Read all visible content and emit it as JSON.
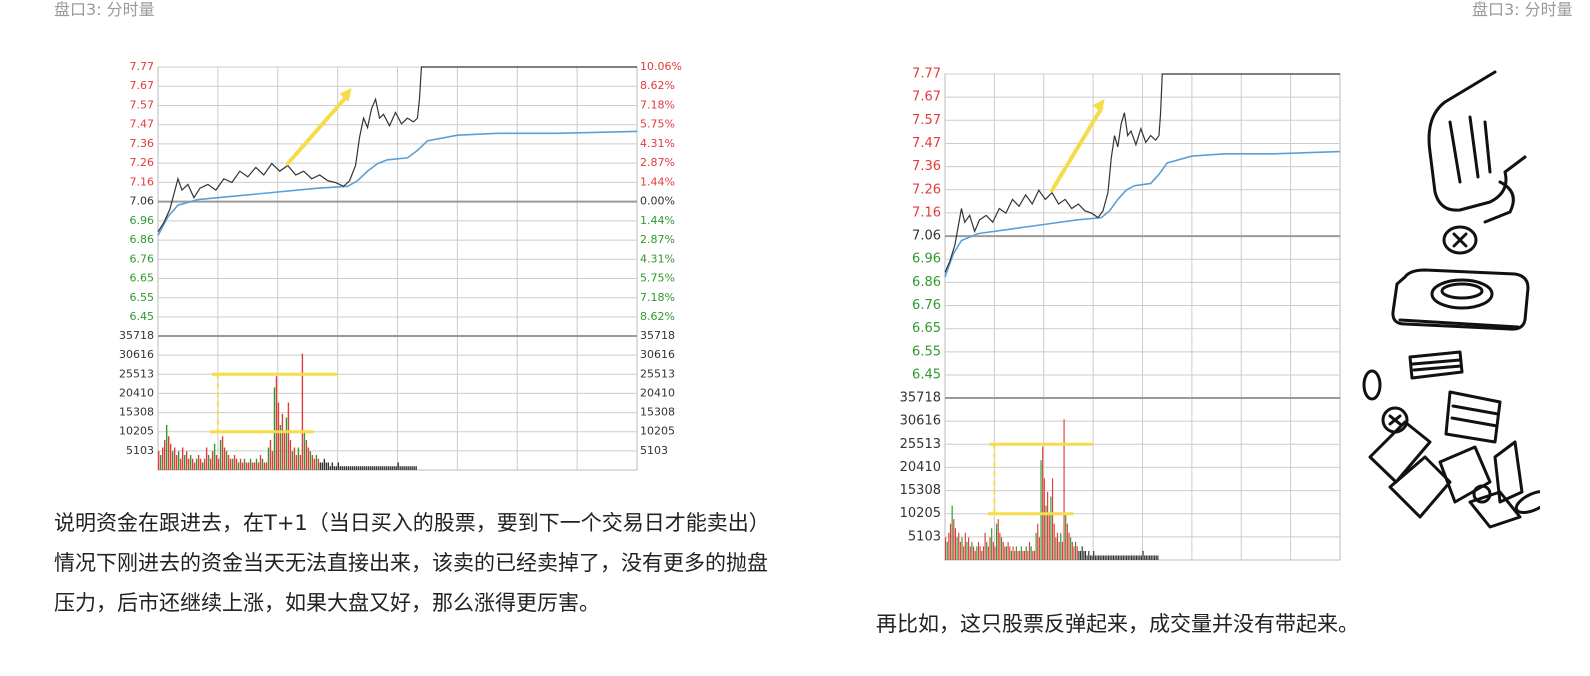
{
  "header": {
    "left": "盘口3: 分时量",
    "right": "盘口3: 分时量"
  },
  "paragraphs": {
    "first": "说明资金在跟进去，在T+1（当日买入的股票，要到下一个交易日才能卖出）情况下刚进去的资金当天无法直接出来，该卖的已经卖掉了，没有更多的抛盘压力，后市还继续上涨，如果大盘又好，那么涨得更厉害。",
    "second": "再比如，这只股票反弹起来，成交量并没有带起来。"
  },
  "colors": {
    "up": "#e23b3b",
    "down": "#2e9a2e",
    "neutral": "#333333",
    "price_line": "#333333",
    "avg_line": "#5aa0d8",
    "annotation": "#f5dc4a",
    "grid": "#cccccc"
  },
  "illustration": {
    "icon": "hand-dropping-coin-into-piggy-slot-and-money-icon"
  },
  "chart_data": [
    {
      "type": "line",
      "grid": true,
      "price_ticks": [
        "7.77",
        "7.67",
        "7.57",
        "7.47",
        "7.36",
        "7.26",
        "7.16",
        "7.06",
        "6.96",
        "6.86",
        "6.76",
        "6.65",
        "6.55",
        "6.45"
      ],
      "pct_ticks": [
        "10.06%",
        "8.62%",
        "7.18%",
        "5.75%",
        "4.31%",
        "2.87%",
        "1.44%",
        "0.00%",
        "1.44%",
        "2.87%",
        "4.31%",
        "5.75%",
        "7.18%",
        "8.62%"
      ],
      "volume_ticks": [
        "35718",
        "30616",
        "25513",
        "20410",
        "15308",
        "10205",
        "5103"
      ],
      "ylim": [
        6.45,
        7.77
      ],
      "volume_ylim": [
        0,
        35718
      ],
      "x_minutes": 240,
      "price": [
        [
          0,
          6.9
        ],
        [
          3,
          6.95
        ],
        [
          6,
          7.02
        ],
        [
          8,
          7.1
        ],
        [
          10,
          7.18
        ],
        [
          12,
          7.12
        ],
        [
          15,
          7.15
        ],
        [
          18,
          7.08
        ],
        [
          21,
          7.13
        ],
        [
          25,
          7.15
        ],
        [
          29,
          7.12
        ],
        [
          33,
          7.18
        ],
        [
          37,
          7.16
        ],
        [
          41,
          7.22
        ],
        [
          45,
          7.19
        ],
        [
          49,
          7.24
        ],
        [
          53,
          7.2
        ],
        [
          57,
          7.26
        ],
        [
          61,
          7.22
        ],
        [
          65,
          7.25
        ],
        [
          69,
          7.2
        ],
        [
          73,
          7.22
        ],
        [
          77,
          7.18
        ],
        [
          81,
          7.2
        ],
        [
          85,
          7.17
        ],
        [
          89,
          7.16
        ],
        [
          93,
          7.14
        ],
        [
          96,
          7.17
        ],
        [
          99,
          7.25
        ],
        [
          101,
          7.4
        ],
        [
          103,
          7.5
        ],
        [
          105,
          7.45
        ],
        [
          107,
          7.55
        ],
        [
          109,
          7.6
        ],
        [
          111,
          7.5
        ],
        [
          113,
          7.52
        ],
        [
          116,
          7.46
        ],
        [
          119,
          7.53
        ],
        [
          122,
          7.47
        ],
        [
          125,
          7.5
        ],
        [
          128,
          7.48
        ],
        [
          130,
          7.5
        ],
        [
          131,
          7.6
        ],
        [
          132,
          7.77
        ],
        [
          240,
          7.77
        ]
      ],
      "average": [
        [
          0,
          6.88
        ],
        [
          5,
          6.98
        ],
        [
          10,
          7.04
        ],
        [
          20,
          7.07
        ],
        [
          40,
          7.09
        ],
        [
          60,
          7.11
        ],
        [
          80,
          7.13
        ],
        [
          95,
          7.14
        ],
        [
          100,
          7.17
        ],
        [
          105,
          7.22
        ],
        [
          110,
          7.26
        ],
        [
          115,
          7.28
        ],
        [
          125,
          7.29
        ],
        [
          130,
          7.33
        ],
        [
          135,
          7.38
        ],
        [
          150,
          7.41
        ],
        [
          170,
          7.42
        ],
        [
          200,
          7.42
        ],
        [
          240,
          7.43
        ]
      ],
      "volume": [
        5,
        4,
        6,
        8,
        12,
        9,
        7,
        5,
        6,
        4,
        5,
        3,
        6,
        4,
        5,
        3,
        4,
        3,
        2,
        3,
        4,
        3,
        2,
        3,
        6,
        4,
        3,
        5,
        7,
        4,
        3,
        8,
        9,
        6,
        5,
        4,
        3,
        3,
        4,
        3,
        2,
        3,
        2,
        3,
        2,
        2,
        3,
        2,
        2,
        3,
        2,
        4,
        3,
        2,
        2,
        6,
        8,
        5,
        22,
        25,
        18,
        12,
        15,
        10,
        14,
        18,
        8,
        5,
        6,
        4,
        6,
        4,
        31,
        10,
        8,
        6,
        5,
        4,
        3,
        4,
        3,
        2,
        2,
        3,
        2,
        2,
        1,
        2,
        1,
        1,
        2,
        1,
        1,
        1,
        1,
        1,
        1,
        1,
        1,
        1,
        1,
        1,
        1,
        1,
        1,
        1,
        1,
        1,
        1,
        1,
        1,
        1,
        1,
        1,
        1,
        1,
        1,
        1,
        1,
        1,
        2,
        1,
        1,
        1,
        1,
        1,
        1,
        1,
        1,
        1
      ]
    },
    {
      "type": "line",
      "grid": true,
      "price_ticks": [
        "7.77",
        "7.67",
        "7.57",
        "7.47",
        "7.36",
        "7.26",
        "7.16",
        "7.06",
        "6.96",
        "6.86",
        "6.76",
        "6.65",
        "6.55",
        "6.45"
      ],
      "volume_ticks": [
        "35718",
        "30616",
        "25513",
        "20410",
        "15308",
        "10205",
        "5103"
      ],
      "ylim": [
        6.45,
        7.77
      ],
      "volume_ylim": [
        0,
        35718
      ],
      "x_minutes": 240,
      "price": [
        [
          0,
          6.9
        ],
        [
          3,
          6.95
        ],
        [
          6,
          7.02
        ],
        [
          8,
          7.1
        ],
        [
          10,
          7.18
        ],
        [
          12,
          7.12
        ],
        [
          15,
          7.15
        ],
        [
          18,
          7.08
        ],
        [
          21,
          7.13
        ],
        [
          25,
          7.15
        ],
        [
          29,
          7.12
        ],
        [
          33,
          7.18
        ],
        [
          37,
          7.16
        ],
        [
          41,
          7.22
        ],
        [
          45,
          7.19
        ],
        [
          49,
          7.24
        ],
        [
          53,
          7.2
        ],
        [
          57,
          7.26
        ],
        [
          61,
          7.22
        ],
        [
          65,
          7.25
        ],
        [
          69,
          7.2
        ],
        [
          73,
          7.22
        ],
        [
          77,
          7.18
        ],
        [
          81,
          7.2
        ],
        [
          85,
          7.17
        ],
        [
          89,
          7.16
        ],
        [
          93,
          7.14
        ],
        [
          96,
          7.17
        ],
        [
          99,
          7.25
        ],
        [
          101,
          7.4
        ],
        [
          103,
          7.5
        ],
        [
          105,
          7.45
        ],
        [
          107,
          7.55
        ],
        [
          109,
          7.6
        ],
        [
          111,
          7.5
        ],
        [
          113,
          7.52
        ],
        [
          116,
          7.46
        ],
        [
          119,
          7.53
        ],
        [
          122,
          7.47
        ],
        [
          125,
          7.5
        ],
        [
          128,
          7.48
        ],
        [
          130,
          7.5
        ],
        [
          131,
          7.6
        ],
        [
          132,
          7.77
        ],
        [
          240,
          7.77
        ]
      ],
      "average": [
        [
          0,
          6.88
        ],
        [
          5,
          6.98
        ],
        [
          10,
          7.04
        ],
        [
          20,
          7.07
        ],
        [
          40,
          7.09
        ],
        [
          60,
          7.11
        ],
        [
          80,
          7.13
        ],
        [
          95,
          7.14
        ],
        [
          100,
          7.17
        ],
        [
          105,
          7.22
        ],
        [
          110,
          7.26
        ],
        [
          115,
          7.28
        ],
        [
          125,
          7.29
        ],
        [
          130,
          7.33
        ],
        [
          135,
          7.38
        ],
        [
          150,
          7.41
        ],
        [
          170,
          7.42
        ],
        [
          200,
          7.42
        ],
        [
          240,
          7.43
        ]
      ],
      "volume": [
        5,
        4,
        6,
        8,
        12,
        9,
        7,
        5,
        6,
        4,
        5,
        3,
        6,
        4,
        5,
        3,
        4,
        3,
        2,
        3,
        4,
        3,
        2,
        3,
        6,
        4,
        3,
        5,
        7,
        4,
        3,
        8,
        9,
        6,
        5,
        4,
        3,
        3,
        4,
        3,
        2,
        3,
        2,
        3,
        2,
        2,
        3,
        2,
        2,
        3,
        2,
        4,
        3,
        2,
        2,
        6,
        8,
        5,
        22,
        25,
        18,
        12,
        15,
        10,
        14,
        18,
        8,
        5,
        6,
        4,
        6,
        4,
        31,
        10,
        8,
        6,
        5,
        4,
        3,
        4,
        3,
        2,
        2,
        3,
        2,
        2,
        1,
        2,
        1,
        1,
        2,
        1,
        1,
        1,
        1,
        1,
        1,
        1,
        1,
        1,
        1,
        1,
        1,
        1,
        1,
        1,
        1,
        1,
        1,
        1,
        1,
        1,
        1,
        1,
        1,
        1,
        1,
        1,
        1,
        1,
        2,
        1,
        1,
        1,
        1,
        1,
        1,
        1,
        1,
        1
      ]
    }
  ]
}
